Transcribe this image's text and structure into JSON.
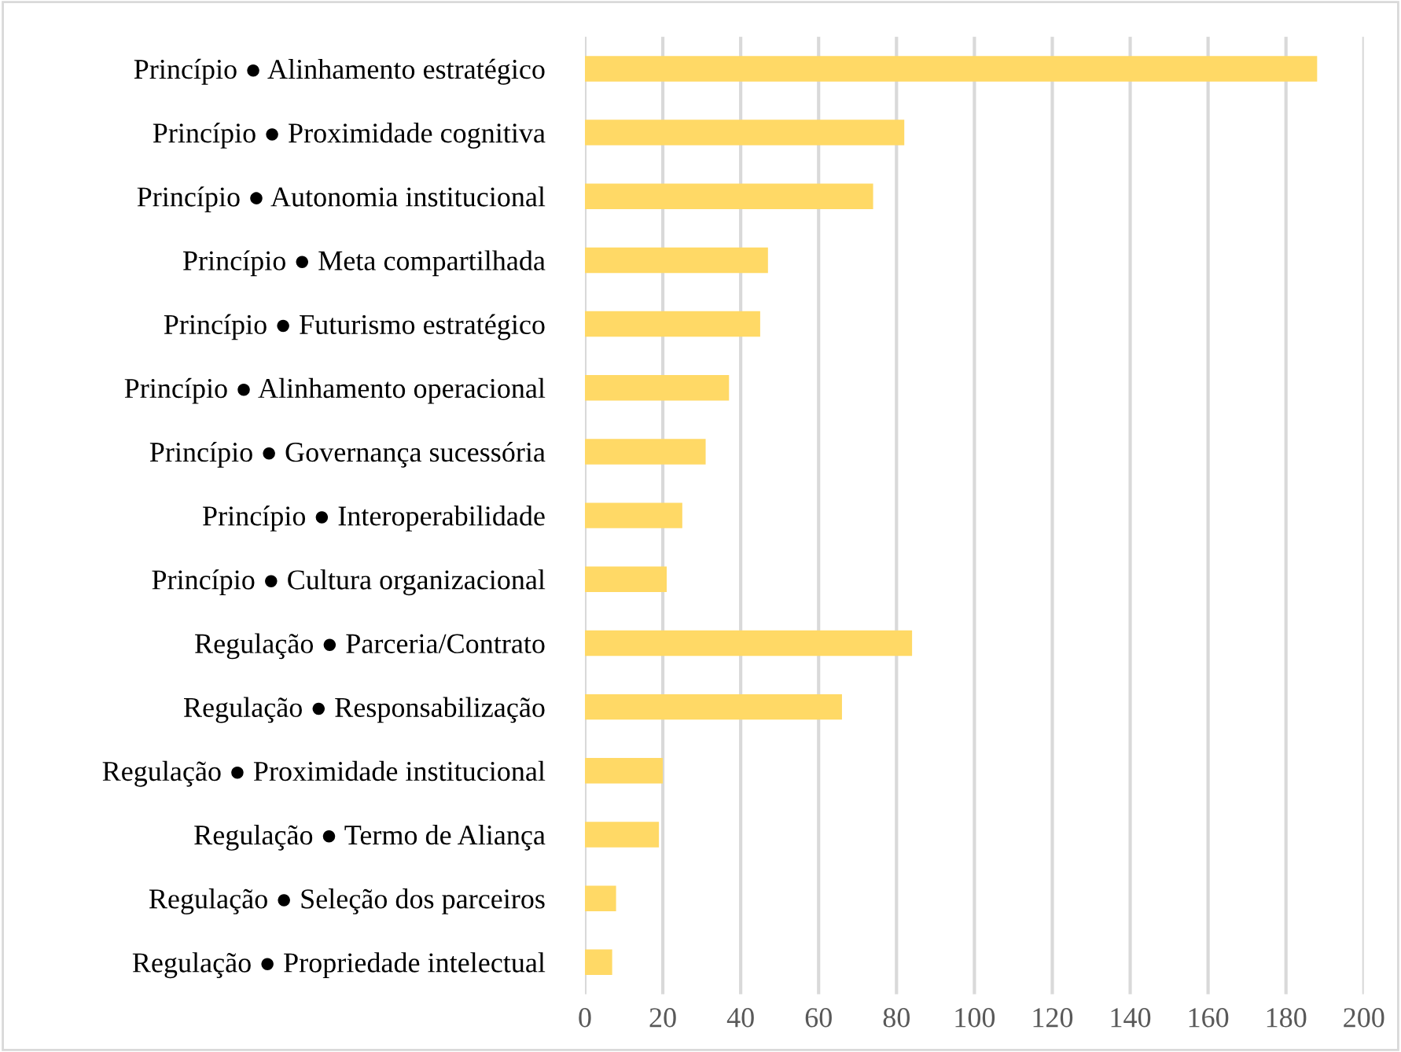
{
  "chart_data": {
    "type": "bar",
    "orientation": "horizontal",
    "categories": [
      "Princípio ● Alinhamento estratégico",
      "Princípio ● Proximidade cognitiva",
      "Princípio ● Autonomia institucional",
      "Princípio ● Meta compartilhada",
      "Princípio ● Futurismo estratégico",
      "Princípio ● Alinhamento operacional",
      "Princípio ● Governança sucessória",
      "Princípio ● Interoperabilidade",
      "Princípio ● Cultura organizacional",
      "Regulação ● Parceria/Contrato",
      "Regulação ● Responsabilização",
      "Regulação ● Proximidade institucional",
      "Regulação ● Termo de Aliança",
      "Regulação ● Seleção dos parceiros",
      "Regulação ● Propriedade intelectual"
    ],
    "values": [
      188,
      82,
      74,
      47,
      45,
      37,
      31,
      25,
      21,
      84,
      66,
      20,
      19,
      8,
      7
    ],
    "color": "#ffd966",
    "xlim": [
      0,
      200
    ],
    "xticks": [
      0,
      20,
      40,
      60,
      80,
      100,
      120,
      140,
      160,
      180,
      200
    ],
    "grid": "x",
    "legend": false
  }
}
